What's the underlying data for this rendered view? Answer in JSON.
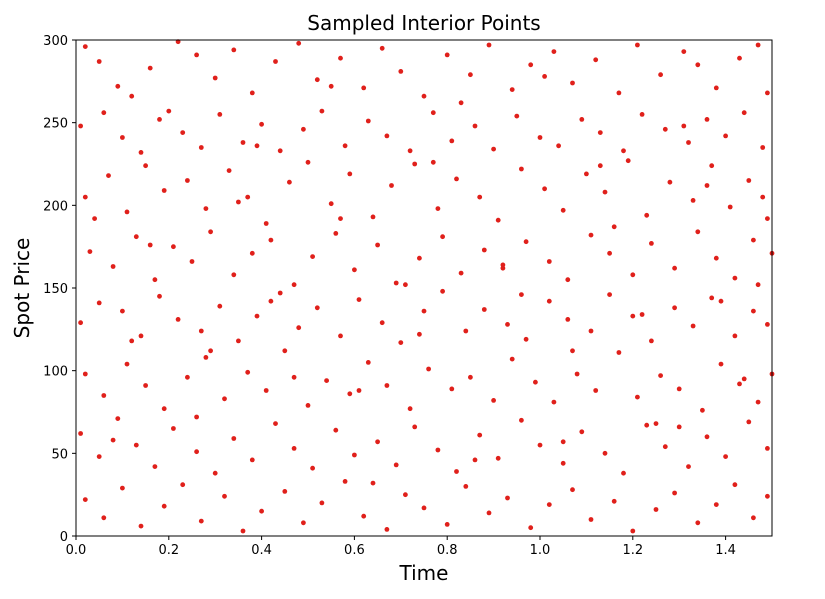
{
  "chart_data": {
    "type": "scatter",
    "title": "Sampled Interior Points",
    "xlabel": "Time",
    "ylabel": "Spot Price",
    "xlim": [
      0.0,
      1.5
    ],
    "ylim": [
      0,
      300
    ],
    "x_ticks": [
      "0.0",
      "0.2",
      "0.4",
      "0.6",
      "0.8",
      "1.0",
      "1.2",
      "1.4"
    ],
    "y_ticks": [
      "0",
      "50",
      "100",
      "150",
      "200",
      "250",
      "300"
    ],
    "grid": false,
    "legend": "none",
    "point_color": "#e0201b",
    "series": [
      {
        "points": [
          [
            0.02,
            296
          ],
          [
            0.05,
            287
          ],
          [
            0.09,
            272
          ],
          [
            0.12,
            266
          ],
          [
            0.16,
            283
          ],
          [
            0.22,
            299
          ],
          [
            0.26,
            291
          ],
          [
            0.3,
            277
          ],
          [
            0.34,
            294
          ],
          [
            0.38,
            268
          ],
          [
            0.43,
            287
          ],
          [
            0.48,
            298
          ],
          [
            0.52,
            276
          ],
          [
            0.57,
            289
          ],
          [
            0.62,
            271
          ],
          [
            0.66,
            295
          ],
          [
            0.7,
            281
          ],
          [
            0.75,
            266
          ],
          [
            0.8,
            291
          ],
          [
            0.85,
            279
          ],
          [
            0.89,
            297
          ],
          [
            0.94,
            270
          ],
          [
            0.98,
            285
          ],
          [
            1.03,
            293
          ],
          [
            1.07,
            274
          ],
          [
            1.12,
            288
          ],
          [
            1.17,
            268
          ],
          [
            1.21,
            297
          ],
          [
            1.26,
            279
          ],
          [
            1.31,
            293
          ],
          [
            1.34,
            285
          ],
          [
            1.38,
            271
          ],
          [
            1.43,
            289
          ],
          [
            1.47,
            297
          ],
          [
            1.49,
            268
          ],
          [
            0.01,
            248
          ],
          [
            0.06,
            256
          ],
          [
            0.1,
            241
          ],
          [
            0.14,
            232
          ],
          [
            0.18,
            252
          ],
          [
            0.23,
            244
          ],
          [
            0.27,
            235
          ],
          [
            0.31,
            255
          ],
          [
            0.36,
            238
          ],
          [
            0.4,
            249
          ],
          [
            0.44,
            233
          ],
          [
            0.49,
            246
          ],
          [
            0.53,
            257
          ],
          [
            0.58,
            236
          ],
          [
            0.63,
            251
          ],
          [
            0.67,
            242
          ],
          [
            0.72,
            233
          ],
          [
            0.77,
            256
          ],
          [
            0.81,
            239
          ],
          [
            0.86,
            248
          ],
          [
            0.9,
            234
          ],
          [
            0.95,
            254
          ],
          [
            1.0,
            241
          ],
          [
            1.04,
            236
          ],
          [
            1.09,
            252
          ],
          [
            1.13,
            244
          ],
          [
            1.18,
            233
          ],
          [
            1.22,
            255
          ],
          [
            1.27,
            246
          ],
          [
            1.32,
            238
          ],
          [
            1.36,
            252
          ],
          [
            1.4,
            242
          ],
          [
            1.44,
            256
          ],
          [
            1.48,
            235
          ],
          [
            0.02,
            205
          ],
          [
            0.07,
            218
          ],
          [
            0.11,
            196
          ],
          [
            0.15,
            224
          ],
          [
            0.19,
            209
          ],
          [
            0.24,
            215
          ],
          [
            0.28,
            198
          ],
          [
            0.33,
            221
          ],
          [
            0.37,
            205
          ],
          [
            0.41,
            189
          ],
          [
            0.46,
            214
          ],
          [
            0.5,
            226
          ],
          [
            0.55,
            201
          ],
          [
            0.59,
            219
          ],
          [
            0.64,
            193
          ],
          [
            0.68,
            212
          ],
          [
            0.73,
            225
          ],
          [
            0.78,
            198
          ],
          [
            0.82,
            216
          ],
          [
            0.87,
            205
          ],
          [
            0.91,
            191
          ],
          [
            0.96,
            222
          ],
          [
            1.01,
            210
          ],
          [
            1.05,
            197
          ],
          [
            1.1,
            219
          ],
          [
            1.14,
            208
          ],
          [
            1.19,
            227
          ],
          [
            1.23,
            194
          ],
          [
            1.28,
            214
          ],
          [
            1.33,
            203
          ],
          [
            1.37,
            224
          ],
          [
            1.41,
            199
          ],
          [
            1.45,
            215
          ],
          [
            1.49,
            192
          ],
          [
            0.03,
            172
          ],
          [
            0.08,
            163
          ],
          [
            0.13,
            181
          ],
          [
            0.17,
            155
          ],
          [
            0.21,
            175
          ],
          [
            0.25,
            166
          ],
          [
            0.29,
            184
          ],
          [
            0.34,
            158
          ],
          [
            0.38,
            171
          ],
          [
            0.42,
            179
          ],
          [
            0.47,
            152
          ],
          [
            0.51,
            169
          ],
          [
            0.56,
            183
          ],
          [
            0.6,
            161
          ],
          [
            0.65,
            176
          ],
          [
            0.69,
            153
          ],
          [
            0.74,
            168
          ],
          [
            0.79,
            181
          ],
          [
            0.83,
            159
          ],
          [
            0.88,
            173
          ],
          [
            0.92,
            164
          ],
          [
            0.97,
            178
          ],
          [
            1.02,
            166
          ],
          [
            1.06,
            155
          ],
          [
            1.11,
            182
          ],
          [
            1.15,
            171
          ],
          [
            1.2,
            158
          ],
          [
            1.24,
            177
          ],
          [
            1.29,
            162
          ],
          [
            1.34,
            184
          ],
          [
            1.38,
            168
          ],
          [
            1.42,
            156
          ],
          [
            1.46,
            179
          ],
          [
            1.5,
            171
          ],
          [
            0.01,
            129
          ],
          [
            0.05,
            141
          ],
          [
            0.1,
            136
          ],
          [
            0.14,
            121
          ],
          [
            0.18,
            145
          ],
          [
            0.22,
            131
          ],
          [
            0.27,
            124
          ],
          [
            0.31,
            139
          ],
          [
            0.35,
            118
          ],
          [
            0.39,
            133
          ],
          [
            0.44,
            147
          ],
          [
            0.48,
            126
          ],
          [
            0.52,
            138
          ],
          [
            0.57,
            121
          ],
          [
            0.61,
            143
          ],
          [
            0.66,
            129
          ],
          [
            0.7,
            117
          ],
          [
            0.75,
            136
          ],
          [
            0.79,
            148
          ],
          [
            0.84,
            124
          ],
          [
            0.88,
            137
          ],
          [
            0.93,
            128
          ],
          [
            0.97,
            119
          ],
          [
            1.02,
            142
          ],
          [
            1.06,
            131
          ],
          [
            1.11,
            124
          ],
          [
            1.15,
            146
          ],
          [
            1.2,
            133
          ],
          [
            1.24,
            118
          ],
          [
            1.29,
            138
          ],
          [
            1.33,
            127
          ],
          [
            1.37,
            144
          ],
          [
            1.42,
            121
          ],
          [
            1.46,
            136
          ],
          [
            1.49,
            128
          ],
          [
            0.02,
            98
          ],
          [
            0.06,
            85
          ],
          [
            0.11,
            104
          ],
          [
            0.15,
            91
          ],
          [
            0.19,
            77
          ],
          [
            0.24,
            96
          ],
          [
            0.28,
            108
          ],
          [
            0.32,
            83
          ],
          [
            0.37,
            99
          ],
          [
            0.41,
            88
          ],
          [
            0.45,
            112
          ],
          [
            0.5,
            79
          ],
          [
            0.54,
            94
          ],
          [
            0.59,
            86
          ],
          [
            0.63,
            105
          ],
          [
            0.67,
            91
          ],
          [
            0.72,
            77
          ],
          [
            0.76,
            101
          ],
          [
            0.81,
            89
          ],
          [
            0.85,
            96
          ],
          [
            0.9,
            82
          ],
          [
            0.94,
            107
          ],
          [
            0.99,
            93
          ],
          [
            1.03,
            81
          ],
          [
            1.08,
            98
          ],
          [
            1.12,
            88
          ],
          [
            1.17,
            111
          ],
          [
            1.21,
            84
          ],
          [
            1.26,
            97
          ],
          [
            1.3,
            89
          ],
          [
            1.35,
            76
          ],
          [
            1.39,
            104
          ],
          [
            1.43,
            92
          ],
          [
            1.47,
            81
          ],
          [
            1.5,
            98
          ],
          [
            0.01,
            62
          ],
          [
            0.05,
            48
          ],
          [
            0.09,
            71
          ],
          [
            0.13,
            55
          ],
          [
            0.17,
            42
          ],
          [
            0.21,
            65
          ],
          [
            0.26,
            51
          ],
          [
            0.3,
            38
          ],
          [
            0.34,
            59
          ],
          [
            0.38,
            46
          ],
          [
            0.43,
            68
          ],
          [
            0.47,
            53
          ],
          [
            0.51,
            41
          ],
          [
            0.56,
            64
          ],
          [
            0.6,
            49
          ],
          [
            0.65,
            57
          ],
          [
            0.69,
            43
          ],
          [
            0.73,
            66
          ],
          [
            0.78,
            52
          ],
          [
            0.82,
            39
          ],
          [
            0.87,
            61
          ],
          [
            0.91,
            47
          ],
          [
            0.96,
            70
          ],
          [
            1.0,
            55
          ],
          [
            1.05,
            44
          ],
          [
            1.09,
            63
          ],
          [
            1.14,
            50
          ],
          [
            1.18,
            38
          ],
          [
            1.23,
            67
          ],
          [
            1.27,
            54
          ],
          [
            1.32,
            42
          ],
          [
            1.36,
            60
          ],
          [
            1.4,
            48
          ],
          [
            1.45,
            69
          ],
          [
            1.49,
            53
          ],
          [
            0.02,
            22
          ],
          [
            0.06,
            11
          ],
          [
            0.1,
            29
          ],
          [
            0.14,
            6
          ],
          [
            0.19,
            18
          ],
          [
            0.23,
            31
          ],
          [
            0.27,
            9
          ],
          [
            0.32,
            24
          ],
          [
            0.36,
            3
          ],
          [
            0.4,
            15
          ],
          [
            0.45,
            27
          ],
          [
            0.49,
            8
          ],
          [
            0.53,
            20
          ],
          [
            0.58,
            33
          ],
          [
            0.62,
            12
          ],
          [
            0.67,
            4
          ],
          [
            0.71,
            25
          ],
          [
            0.75,
            17
          ],
          [
            0.8,
            7
          ],
          [
            0.84,
            30
          ],
          [
            0.89,
            14
          ],
          [
            0.93,
            23
          ],
          [
            0.98,
            5
          ],
          [
            1.02,
            19
          ],
          [
            1.07,
            28
          ],
          [
            1.11,
            10
          ],
          [
            1.16,
            21
          ],
          [
            1.2,
            3
          ],
          [
            1.25,
            16
          ],
          [
            1.29,
            26
          ],
          [
            1.34,
            8
          ],
          [
            1.38,
            19
          ],
          [
            1.42,
            31
          ],
          [
            1.46,
            11
          ],
          [
            1.49,
            24
          ],
          [
            0.04,
            192
          ],
          [
            0.12,
            118
          ],
          [
            0.2,
            257
          ],
          [
            0.26,
            72
          ],
          [
            0.35,
            202
          ],
          [
            0.42,
            142
          ],
          [
            0.55,
            272
          ],
          [
            0.61,
            88
          ],
          [
            0.71,
            152
          ],
          [
            0.77,
            226
          ],
          [
            0.86,
            46
          ],
          [
            0.92,
            162
          ],
          [
            1.01,
            278
          ],
          [
            1.07,
            112
          ],
          [
            1.16,
            187
          ],
          [
            1.25,
            68
          ],
          [
            1.31,
            248
          ],
          [
            1.39,
            142
          ],
          [
            1.44,
            95
          ],
          [
            1.48,
            205
          ],
          [
            0.08,
            58
          ],
          [
            0.16,
            176
          ],
          [
            0.29,
            112
          ],
          [
            0.39,
            236
          ],
          [
            0.47,
            96
          ],
          [
            0.57,
            192
          ],
          [
            0.64,
            32
          ],
          [
            0.74,
            122
          ],
          [
            0.83,
            262
          ],
          [
            0.96,
            146
          ],
          [
            1.05,
            57
          ],
          [
            1.13,
            224
          ],
          [
            1.22,
            134
          ],
          [
            1.3,
            66
          ],
          [
            1.36,
            212
          ],
          [
            1.47,
            152
          ]
        ]
      }
    ]
  }
}
